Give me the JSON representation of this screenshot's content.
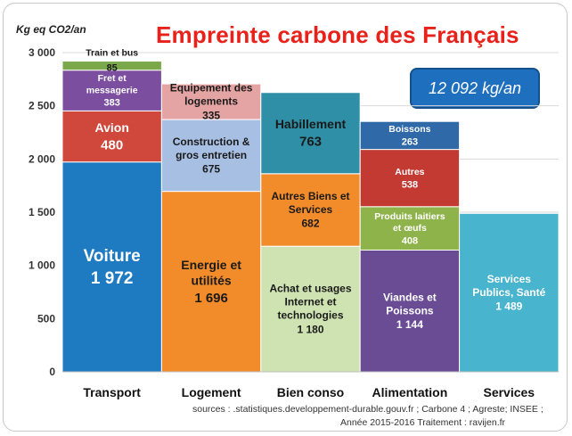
{
  "title": "Empreinte carbone des Français",
  "total_label": "12 092 kg/an",
  "sources": {
    "line1": "sources : .statistiques.developpement-durable.gouv.fr ; Carbone 4 ; Agreste;  INSEE ;",
    "line2": "Année 2015-2016    Traitement : ravijen.fr"
  },
  "colors": {
    "voiture": "#1f7bc1",
    "avion": "#d0473c",
    "fret": "#7b4ea0",
    "train": "#7aa84a",
    "energie": "#f28c2a",
    "construction": "#a7bfe3",
    "equipement": "#e5a4a4",
    "achat": "#cfe3b2",
    "autres_biens": "#f28c2a",
    "habillement": "#2f8fa6",
    "viandes": "#6a4c95",
    "laitiers": "#8fb34b",
    "autres_alim": "#c33a33",
    "boissons": "#2f69a8",
    "services": "#48b4cd"
  },
  "chart_data": {
    "type": "bar",
    "stacked": true,
    "ylabel": "Kg eq CO2/an",
    "ylim": [
      0,
      3000
    ],
    "yticks": [
      "0",
      "500",
      "1 000",
      "1 500",
      "2 000",
      "2 500",
      "3 000"
    ],
    "ytick_values": [
      0,
      500,
      1000,
      1500,
      2000,
      2500,
      3000
    ],
    "categories": [
      "Transport",
      "Logement",
      "Bien conso",
      "Alimentation",
      "Services"
    ],
    "stacks": [
      {
        "category": "Transport",
        "segments": [
          {
            "label": "Voiture",
            "value_label": "1 972",
            "value": 1972,
            "color_key": "voiture",
            "text_color": "#ffffff",
            "size": "big"
          },
          {
            "label": "Avion",
            "value_label": "480",
            "value": 480,
            "color_key": "avion",
            "text_color": "#ffffff",
            "size": "mid"
          },
          {
            "label": "Fret et messagerie",
            "value_label": "383",
            "value": 383,
            "color_key": "fret",
            "text_color": "#ffffff",
            "size": "small"
          },
          {
            "label": "Train et bus",
            "value_label": "85",
            "value": 85,
            "color_key": "train",
            "text_color": "#1a1a1a",
            "size": "small"
          }
        ]
      },
      {
        "category": "Logement",
        "segments": [
          {
            "label": "Energie et utilités",
            "value_label": "1 696",
            "value": 1696,
            "color_key": "energie",
            "text_color": "#1a1a1a",
            "size": "mid"
          },
          {
            "label": "Construction & gros entretien",
            "value_label": "675",
            "value": 675,
            "color_key": "construction",
            "text_color": "#1a1a1a",
            "size": "normal"
          },
          {
            "label": "Equipement des logements",
            "value_label": "335",
            "value": 335,
            "color_key": "equipement",
            "text_color": "#1a1a1a",
            "size": "normal"
          }
        ]
      },
      {
        "category": "Bien conso",
        "segments": [
          {
            "label": "Achat et usages Internet et technologies",
            "value_label": "1 180",
            "value": 1180,
            "color_key": "achat",
            "text_color": "#1a1a1a",
            "size": "normal"
          },
          {
            "label": "Autres Biens et Services",
            "value_label": "682",
            "value": 682,
            "color_key": "autres_biens",
            "text_color": "#1a1a1a",
            "size": "normal"
          },
          {
            "label": "Habillement",
            "value_label": "763",
            "value": 763,
            "color_key": "habillement",
            "text_color": "#1a1a1a",
            "size": "mid"
          }
        ]
      },
      {
        "category": "Alimentation",
        "segments": [
          {
            "label": "Viandes et Poissons",
            "value_label": "1 144",
            "value": 1144,
            "color_key": "viandes",
            "text_color": "#ffffff",
            "size": "normal"
          },
          {
            "label": "Produits laitiers et œufs",
            "value_label": "408",
            "value": 408,
            "color_key": "laitiers",
            "text_color": "#ffffff",
            "size": "small"
          },
          {
            "label": "Autres",
            "value_label": "538",
            "value": 538,
            "color_key": "autres_alim",
            "text_color": "#ffffff",
            "size": "small"
          },
          {
            "label": "Boissons",
            "value_label": "263",
            "value": 263,
            "color_key": "boissons",
            "text_color": "#ffffff",
            "size": "small"
          }
        ]
      },
      {
        "category": "Services",
        "segments": [
          {
            "label": "Services Publics, Santé",
            "value_label": "1 489",
            "value": 1489,
            "color_key": "services",
            "text_color": "#ffffff",
            "size": "normal"
          }
        ]
      }
    ]
  }
}
